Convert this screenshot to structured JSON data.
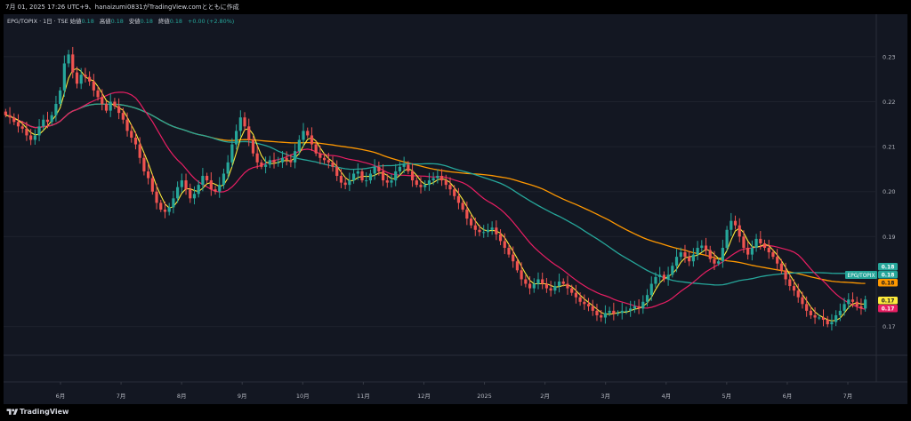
{
  "header": {
    "caption": "7月 01, 2025 17:26 UTC+9、hanaizumi0831がTradingView.comとともに作成"
  },
  "legend": {
    "symbol": "EPG/TOPIX · 1日 · TSE",
    "open_label": "始値",
    "open_value": "0.18",
    "high_label": "高値",
    "high_value": "0.18",
    "low_label": "安値",
    "low_value": "0.18",
    "close_label": "終値",
    "close_value": "0.18",
    "change": "+0.00 (+2.80%)"
  },
  "footer": {
    "brand": "TradingView"
  },
  "colors": {
    "background": "#131722",
    "up": "#26a69a",
    "down": "#ef5350",
    "ma_fast": "#ffeb3b",
    "ma_pink": "#e91e63",
    "ma_teal": "#26a69a",
    "ma_orange": "#ff9800"
  },
  "chart_data": {
    "type": "candlestick",
    "y_ticks": [
      "0.23",
      "0.22",
      "0.21",
      "0.20",
      "0.19",
      "0.17"
    ],
    "ylim": [
      0.164,
      0.2355
    ],
    "x_ticks": [
      "6月",
      "7月",
      "8月",
      "9月",
      "10月",
      "11月",
      "12月",
      "2025",
      "2月",
      "3月",
      "4月",
      "5月",
      "6月",
      "7月"
    ],
    "price_tag": "EPG/TOPIX",
    "value_badges": [
      {
        "value": "0.18",
        "color": "#26a69a"
      },
      {
        "value": "0.18",
        "color": "#26a69a"
      },
      {
        "value": "0.18",
        "color": "#ff9800"
      },
      {
        "value": "0.17",
        "color": "#ffeb3b"
      },
      {
        "value": "0.17",
        "color": "#e91e63"
      }
    ],
    "close_series": [
      0.217,
      0.2165,
      0.2155,
      0.2145,
      0.214,
      0.2125,
      0.2115,
      0.2125,
      0.2145,
      0.216,
      0.2155,
      0.217,
      0.2195,
      0.2225,
      0.2285,
      0.2305,
      0.2265,
      0.224,
      0.226,
      0.2255,
      0.2245,
      0.2225,
      0.221,
      0.2195,
      0.218,
      0.22,
      0.219,
      0.2175,
      0.216,
      0.2135,
      0.212,
      0.2105,
      0.2075,
      0.2045,
      0.203,
      0.2,
      0.1975,
      0.196,
      0.1955,
      0.1965,
      0.1985,
      0.201,
      0.2025,
      0.2005,
      0.1985,
      0.1995,
      0.2015,
      0.2035,
      0.2025,
      0.2005,
      0.2,
      0.2015,
      0.204,
      0.2065,
      0.2105,
      0.2135,
      0.2165,
      0.2145,
      0.2115,
      0.2085,
      0.2065,
      0.2055,
      0.206,
      0.207,
      0.2065,
      0.2065,
      0.2075,
      0.207,
      0.2065,
      0.209,
      0.2115,
      0.2135,
      0.2125,
      0.2105,
      0.2085,
      0.2075,
      0.207,
      0.2065,
      0.2055,
      0.2035,
      0.202,
      0.2015,
      0.2025,
      0.204,
      0.2045,
      0.2025,
      0.2025,
      0.204,
      0.2055,
      0.2045,
      0.2025,
      0.202,
      0.2025,
      0.2045,
      0.2055,
      0.206,
      0.2045,
      0.2025,
      0.2015,
      0.201,
      0.2015,
      0.2025,
      0.203,
      0.2035,
      0.2025,
      0.2015,
      0.2005,
      0.199,
      0.1975,
      0.196,
      0.194,
      0.1925,
      0.1915,
      0.191,
      0.191,
      0.1915,
      0.192,
      0.1905,
      0.189,
      0.1875,
      0.186,
      0.1845,
      0.1825,
      0.1805,
      0.1795,
      0.1785,
      0.1795,
      0.1805,
      0.1795,
      0.1785,
      0.178,
      0.179,
      0.18,
      0.1795,
      0.1785,
      0.1775,
      0.1765,
      0.1755,
      0.175,
      0.1745,
      0.1735,
      0.1725,
      0.172,
      0.173,
      0.1735,
      0.1728,
      0.173,
      0.1735,
      0.1735,
      0.174,
      0.1745,
      0.174,
      0.1755,
      0.177,
      0.1795,
      0.181,
      0.1815,
      0.1805,
      0.1815,
      0.1835,
      0.1855,
      0.1865,
      0.1855,
      0.1845,
      0.186,
      0.1875,
      0.188,
      0.187,
      0.185,
      0.184,
      0.1845,
      0.1875,
      0.1915,
      0.1935,
      0.1925,
      0.19,
      0.1875,
      0.186,
      0.1875,
      0.1895,
      0.1885,
      0.1875,
      0.1865,
      0.1855,
      0.184,
      0.1825,
      0.1805,
      0.179,
      0.178,
      0.1765,
      0.175,
      0.1735,
      0.1725,
      0.172,
      0.172,
      0.1715,
      0.1705,
      0.171,
      0.1725,
      0.1735,
      0.175,
      0.176,
      0.1755,
      0.1745,
      0.174,
      0.176
    ]
  }
}
